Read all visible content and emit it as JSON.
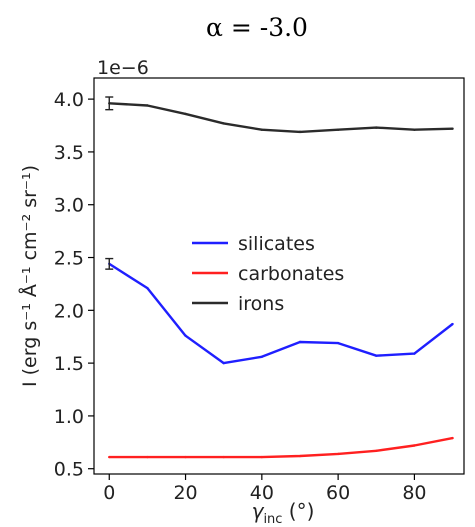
{
  "chart_data": {
    "type": "line",
    "title": "α = -3.0",
    "xlabel": "γ",
    "xlabel_sub": "inc",
    "xlabel_unit": " (°)",
    "ylabel": "I (erg s⁻¹ Å⁻¹ cm⁻² sr⁻¹)",
    "y_multiplier": "1e−6",
    "xlim": [
      -4,
      93
    ],
    "ylim": [
      0.45,
      4.2
    ],
    "x_ticks": [
      0,
      20,
      40,
      60,
      80
    ],
    "x_tick_labels": [
      "0",
      "20",
      "40",
      "60",
      "80"
    ],
    "y_ticks": [
      0.5,
      1.0,
      1.5,
      2.0,
      2.5,
      3.0,
      3.5,
      4.0
    ],
    "y_tick_labels": [
      "0.5",
      "1.0",
      "1.5",
      "2.0",
      "2.5",
      "3.0",
      "3.5",
      "4.0"
    ],
    "grid": false,
    "legend_position": "center",
    "x": [
      0,
      10,
      20,
      30,
      40,
      50,
      60,
      70,
      80,
      90
    ],
    "series": [
      {
        "name": "silicates",
        "color": "#1f1fff",
        "values": [
          2.44,
          2.21,
          1.76,
          1.5,
          1.56,
          1.7,
          1.69,
          1.57,
          1.59,
          1.87
        ],
        "error_at_first": 0.05
      },
      {
        "name": "carbonates",
        "color": "#ff2020",
        "values": [
          0.61,
          0.61,
          0.61,
          0.61,
          0.61,
          0.62,
          0.64,
          0.67,
          0.72,
          0.79
        ]
      },
      {
        "name": "irons",
        "color": "#2b2b2b",
        "values": [
          3.96,
          3.94,
          3.86,
          3.77,
          3.71,
          3.69,
          3.71,
          3.73,
          3.71,
          3.72
        ],
        "error_at_first": 0.06
      }
    ]
  }
}
